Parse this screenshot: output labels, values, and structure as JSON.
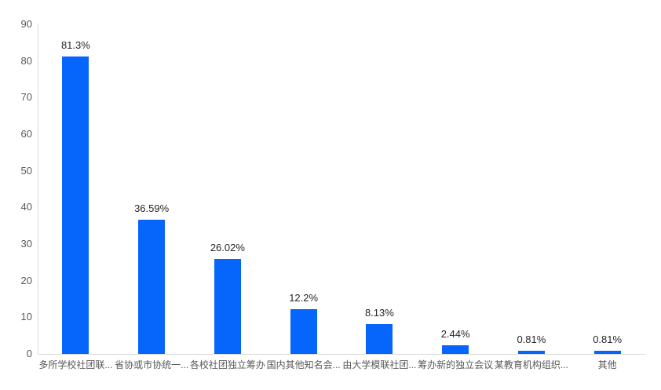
{
  "chart_data": {
    "type": "bar",
    "title": "",
    "xlabel": "",
    "ylabel": "",
    "categories": [
      "多所学校社团联...",
      "省协或市协统一...",
      "各校社团独立筹办",
      "国内其他知名会...",
      "由大学模联社团...",
      "筹办新的独立会议",
      "某教育机构组织...",
      "其他"
    ],
    "values": [
      81.3,
      36.59,
      26.02,
      12.2,
      8.13,
      2.44,
      0.81,
      0.81
    ],
    "value_labels": [
      "81.3%",
      "36.59%",
      "26.02%",
      "12.2%",
      "8.13%",
      "2.44%",
      "0.81%",
      "0.81%"
    ],
    "ylim": [
      0,
      90
    ],
    "y_ticks": [
      90,
      80,
      70,
      60,
      50,
      40,
      30,
      20,
      10,
      0
    ],
    "grid": false,
    "legend": "none",
    "colors": {
      "bar": "#0666FC",
      "axis_line": "#D9D9D9",
      "tick_label": "#595959",
      "category_label": "#595959",
      "value_label": "#262626",
      "background": "#FFFFFF"
    }
  }
}
